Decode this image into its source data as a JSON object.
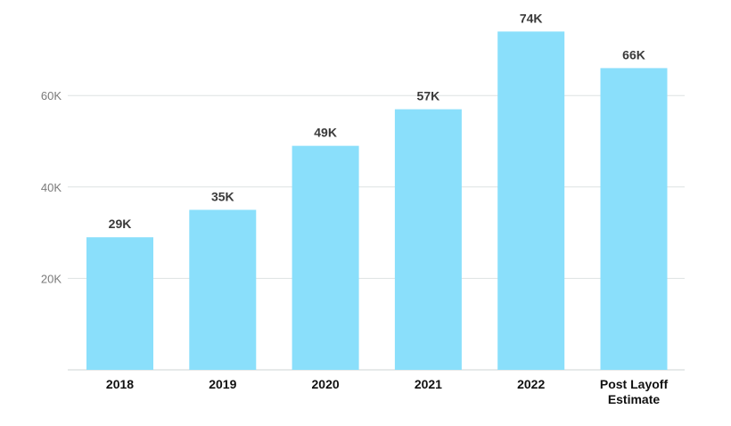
{
  "chart_data": {
    "type": "bar",
    "categories": [
      "2018",
      "2019",
      "2020",
      "2021",
      "2022",
      "Post Layoff\nEstimate"
    ],
    "values": [
      29,
      35,
      49,
      57,
      74,
      66
    ],
    "data_labels": [
      "29K",
      "35K",
      "49K",
      "57K",
      "74K",
      "66K"
    ],
    "unit": "K",
    "ylim": [
      0,
      80
    ],
    "yticks": [
      20,
      40,
      60
    ],
    "ytick_labels": [
      "20K",
      "40K",
      "60K"
    ],
    "grid": true,
    "bar_color": "#8adffb",
    "grid_color": "#dde2e2"
  }
}
